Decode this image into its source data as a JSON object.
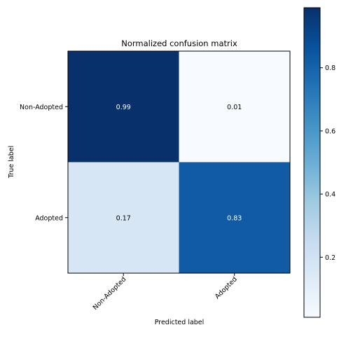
{
  "chart_data": {
    "type": "heatmap",
    "title": "Normalized confusion matrix",
    "xlabel": "Predicted label",
    "ylabel": "True label",
    "x_categories": [
      "Non-Adopted",
      "Adopted"
    ],
    "y_categories": [
      "Non-Adopted",
      "Adopted"
    ],
    "values": [
      [
        0.99,
        0.01
      ],
      [
        0.17,
        0.83
      ]
    ],
    "value_labels": [
      [
        "0.99",
        "0.01"
      ],
      [
        "0.17",
        "0.83"
      ]
    ],
    "colormap": "Blues",
    "colorbar": {
      "vmin": 0.01,
      "vmax": 0.99,
      "ticks": [
        0.2,
        0.4,
        0.6,
        0.8
      ],
      "tick_labels": [
        "0.2",
        "0.4",
        "0.6",
        "0.8"
      ]
    }
  }
}
